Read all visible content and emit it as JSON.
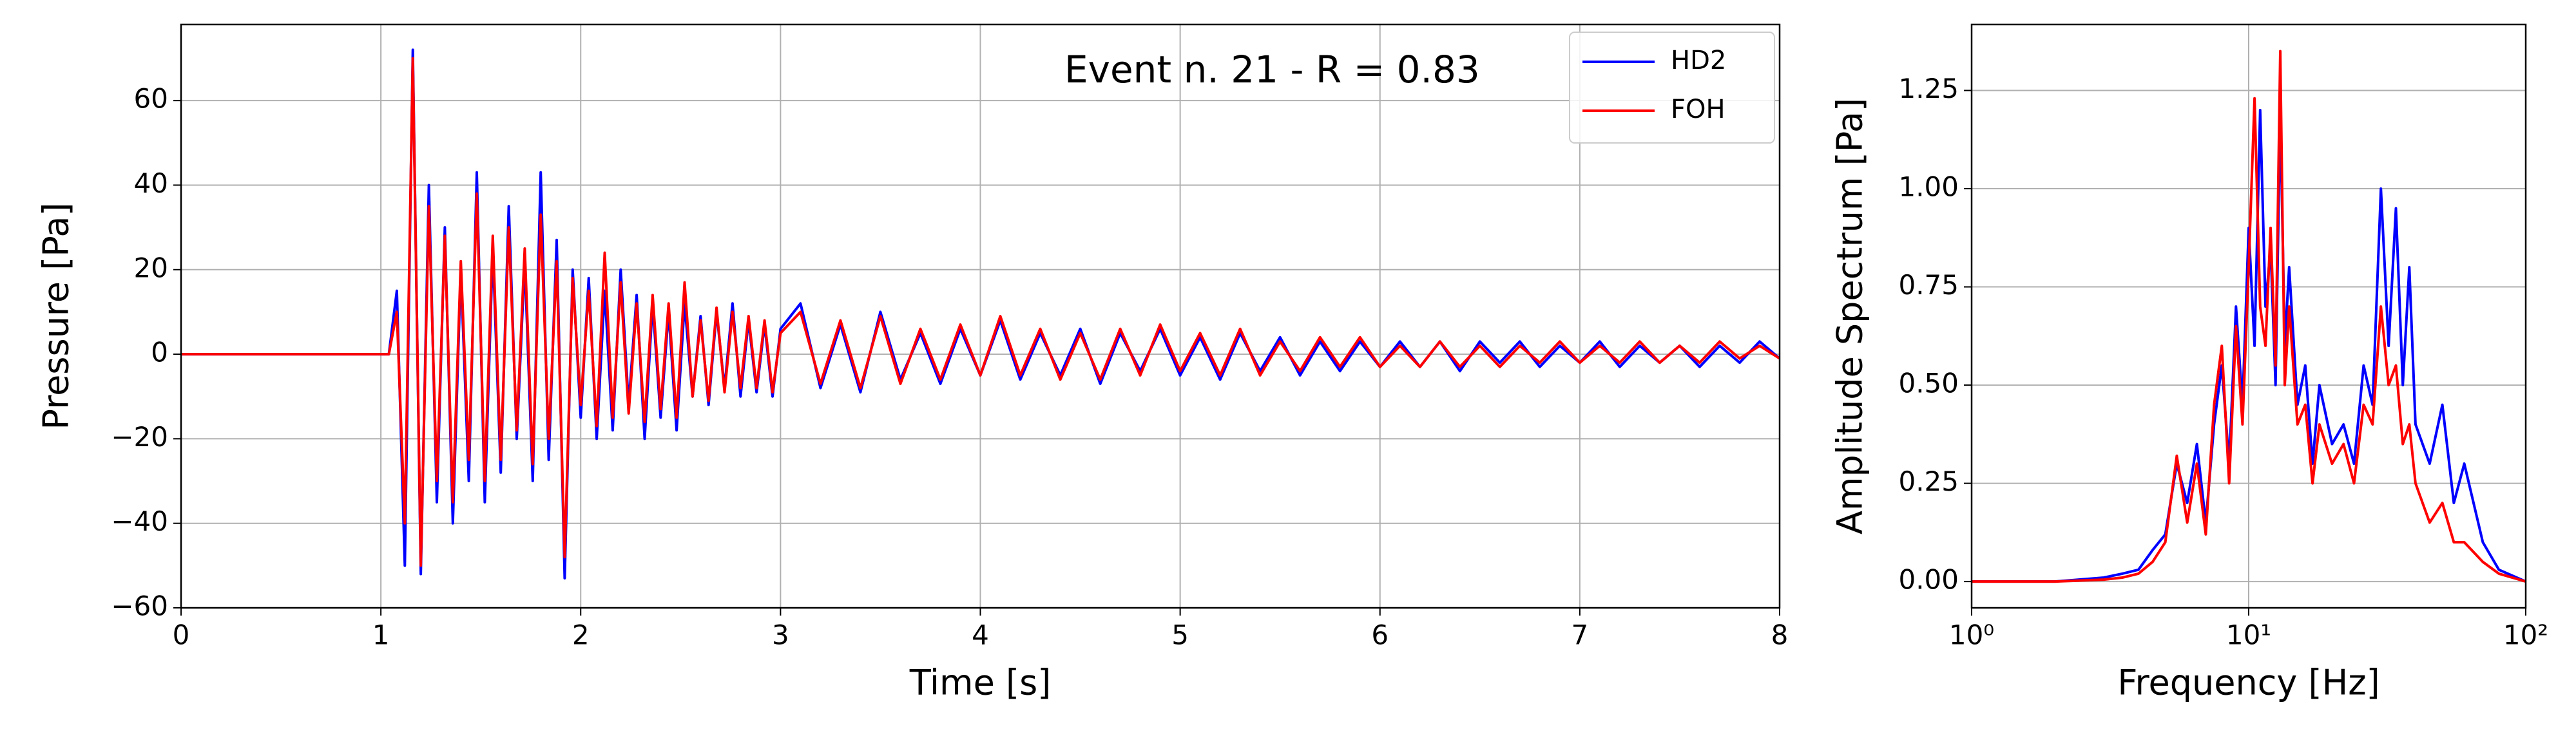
{
  "chart_data": [
    {
      "type": "line",
      "title": "Event n. 21 - R = 0.83",
      "xlabel": "Time [s]",
      "ylabel": "Pressure [Pa]",
      "x": [
        0,
        0.5,
        1.0,
        1.04,
        1.08,
        1.12,
        1.16,
        1.2,
        1.24,
        1.28,
        1.32,
        1.36,
        1.4,
        1.44,
        1.48,
        1.52,
        1.56,
        1.6,
        1.64,
        1.68,
        1.72,
        1.76,
        1.8,
        1.84,
        1.88,
        1.92,
        1.96,
        2.0,
        2.04,
        2.08,
        2.12,
        2.16,
        2.2,
        2.24,
        2.28,
        2.32,
        2.36,
        2.4,
        2.44,
        2.48,
        2.52,
        2.56,
        2.6,
        2.64,
        2.68,
        2.72,
        2.76,
        2.8,
        2.84,
        2.88,
        2.92,
        2.96,
        3.0,
        3.1,
        3.2,
        3.3,
        3.4,
        3.5,
        3.6,
        3.7,
        3.8,
        3.9,
        4.0,
        4.1,
        4.2,
        4.3,
        4.4,
        4.5,
        4.6,
        4.7,
        4.8,
        4.9,
        5.0,
        5.1,
        5.2,
        5.3,
        5.4,
        5.5,
        5.6,
        5.7,
        5.8,
        5.9,
        6.0,
        6.1,
        6.2,
        6.3,
        6.4,
        6.5,
        6.6,
        6.7,
        6.8,
        6.9,
        7.0,
        7.1,
        7.2,
        7.3,
        7.4,
        7.5,
        7.6,
        7.7,
        7.8,
        7.9,
        8.0
      ],
      "series": [
        {
          "name": "HD2",
          "color": "#0000ff",
          "values": [
            0,
            0,
            0,
            0,
            15,
            -50,
            72,
            -52,
            40,
            -35,
            30,
            -40,
            20,
            -30,
            43,
            -35,
            25,
            -28,
            35,
            -20,
            22,
            -30,
            43,
            -25,
            27,
            -53,
            20,
            -15,
            18,
            -20,
            15,
            -18,
            20,
            -12,
            14,
            -20,
            12,
            -15,
            10,
            -18,
            12,
            -10,
            9,
            -12,
            10,
            -8,
            12,
            -10,
            8,
            -9,
            7,
            -10,
            6,
            12,
            -8,
            7,
            -9,
            10,
            -6,
            5,
            -7,
            6,
            -5,
            8,
            -6,
            5,
            -5,
            6,
            -7,
            5,
            -4,
            6,
            -5,
            4,
            -6,
            5,
            -4,
            4,
            -5,
            3,
            -4,
            3,
            -3,
            3,
            -3,
            3,
            -4,
            3,
            -2,
            3,
            -3,
            2,
            -2,
            3,
            -3,
            2,
            -2,
            2,
            -3,
            2,
            -2,
            3,
            -1
          ]
        },
        {
          "name": "FOH",
          "color": "#ff0000",
          "values": [
            0,
            0,
            0,
            0,
            10,
            -40,
            70,
            -50,
            35,
            -30,
            28,
            -35,
            22,
            -25,
            38,
            -30,
            28,
            -25,
            30,
            -18,
            25,
            -26,
            33,
            -20,
            22,
            -48,
            18,
            -12,
            15,
            -17,
            24,
            -15,
            17,
            -14,
            12,
            -16,
            14,
            -13,
            12,
            -15,
            17,
            -10,
            8,
            -11,
            11,
            -9,
            10,
            -8,
            9,
            -8,
            8,
            -9,
            5,
            10,
            -7,
            8,
            -8,
            9,
            -7,
            6,
            -6,
            7,
            -5,
            9,
            -5,
            6,
            -6,
            5,
            -6,
            6,
            -5,
            7,
            -4,
            5,
            -5,
            6,
            -5,
            3,
            -4,
            4,
            -3,
            4,
            -3,
            2,
            -3,
            3,
            -3,
            2,
            -3,
            2,
            -2,
            3,
            -2,
            2,
            -2,
            3,
            -2,
            2,
            -2,
            3,
            -1,
            2,
            -1
          ]
        }
      ],
      "xlim": [
        0,
        8
      ],
      "xticks": [
        0,
        1,
        2,
        3,
        4,
        5,
        6,
        7,
        8
      ],
      "ylim": [
        -60,
        78
      ],
      "yticks": [
        {
          "value": -60,
          "label": "−60"
        },
        {
          "value": -40,
          "label": "−40"
        },
        {
          "value": -20,
          "label": "−20"
        },
        0,
        20,
        40,
        60
      ],
      "grid": true,
      "legend": "upper right"
    },
    {
      "type": "line",
      "xlabel": "Frequency [Hz]",
      "ylabel": "Amplitude Spectrum [Pa]",
      "xscale": "log",
      "x": [
        1,
        2,
        3,
        3.5,
        4,
        4.5,
        5,
        5.5,
        6,
        6.5,
        7,
        7.5,
        8,
        8.5,
        9,
        9.5,
        10,
        10.5,
        11,
        11.5,
        12,
        12.5,
        13,
        13.5,
        14,
        15,
        16,
        17,
        18,
        20,
        22,
        24,
        26,
        28,
        30,
        32,
        34,
        36,
        38,
        40,
        45,
        50,
        55,
        60,
        70,
        80,
        100
      ],
      "series": [
        {
          "color": "#0000ff",
          "values": [
            0,
            0,
            0.01,
            0.02,
            0.03,
            0.08,
            0.12,
            0.3,
            0.2,
            0.35,
            0.15,
            0.4,
            0.55,
            0.3,
            0.7,
            0.45,
            0.9,
            0.6,
            1.2,
            0.7,
            0.85,
            0.5,
            1.2,
            0.6,
            0.8,
            0.45,
            0.55,
            0.3,
            0.5,
            0.35,
            0.4,
            0.3,
            0.55,
            0.45,
            1.0,
            0.6,
            0.95,
            0.5,
            0.8,
            0.4,
            0.3,
            0.45,
            0.2,
            0.3,
            0.1,
            0.03,
            0
          ]
        },
        {
          "color": "#ff0000",
          "values": [
            0,
            0,
            0.005,
            0.01,
            0.02,
            0.05,
            0.1,
            0.32,
            0.15,
            0.3,
            0.12,
            0.45,
            0.6,
            0.25,
            0.65,
            0.4,
            0.8,
            1.23,
            0.7,
            0.6,
            0.9,
            0.55,
            1.35,
            0.5,
            0.7,
            0.4,
            0.45,
            0.25,
            0.4,
            0.3,
            0.35,
            0.25,
            0.45,
            0.4,
            0.7,
            0.5,
            0.55,
            0.35,
            0.4,
            0.25,
            0.15,
            0.2,
            0.1,
            0.1,
            0.05,
            0.02,
            0
          ]
        }
      ],
      "xlim": [
        1,
        100
      ],
      "xticks": [
        {
          "value": 1,
          "label": "10⁰"
        },
        {
          "value": 10,
          "label": "10¹"
        },
        {
          "value": 100,
          "label": "10²"
        }
      ],
      "ylim": [
        -0.067,
        1.418
      ],
      "yticks": [
        {
          "value": 0,
          "label": "0.00"
        },
        {
          "value": 0.25,
          "label": "0.25"
        },
        {
          "value": 0.5,
          "label": "0.50"
        },
        {
          "value": 0.75,
          "label": "0.75"
        },
        {
          "value": 1,
          "label": "1.00"
        },
        {
          "value": 1.25,
          "label": "1.25"
        }
      ],
      "grid": true
    }
  ]
}
